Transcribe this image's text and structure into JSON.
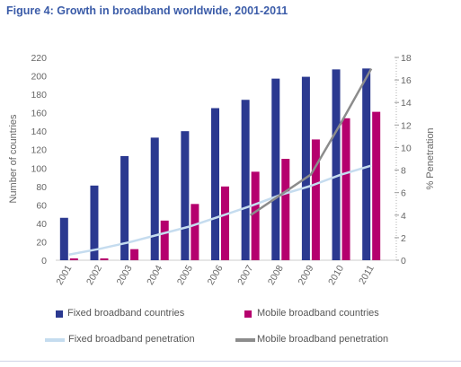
{
  "figure_title": "Figure 4: Growth in broadband worldwide, 2001-2011",
  "colors": {
    "fixed_bar": "#2b3990",
    "mobile_bar": "#b5006e",
    "fixed_line": "#c5dcef",
    "mobile_line": "#8c8c8c",
    "title": "#3a5ba8"
  },
  "chart_data": {
    "type": "bar",
    "categories": [
      "2001",
      "2002",
      "2003",
      "2004",
      "2005",
      "2006",
      "2007",
      "2008",
      "2009",
      "2010",
      "2011"
    ],
    "ylabel": "Number of countries",
    "y2label": "% Penetration",
    "ylim": [
      0,
      220
    ],
    "y2lim": [
      0,
      18
    ],
    "yticks": [
      "0",
      "20",
      "40",
      "60",
      "80",
      "100",
      "120",
      "140",
      "160",
      "180",
      "200",
      "220"
    ],
    "y2ticks": [
      "0",
      "2",
      "4",
      "6",
      "8",
      "10",
      "12",
      "14",
      "16",
      "18"
    ],
    "series": [
      {
        "name": "Fixed broadband countries",
        "kind": "bar",
        "axis": "left",
        "values": [
          46,
          81,
          113,
          133,
          140,
          165,
          174,
          197,
          199,
          207,
          208
        ]
      },
      {
        "name": "Mobile broadband countries",
        "kind": "bar",
        "axis": "left",
        "values": [
          2,
          2,
          12,
          43,
          61,
          80,
          96,
          110,
          131,
          154,
          161
        ]
      },
      {
        "name": "Fixed broadband penetration",
        "kind": "line",
        "axis": "right",
        "values": [
          0.5,
          1.0,
          1.6,
          2.3,
          3.0,
          3.9,
          4.8,
          5.8,
          6.6,
          7.6,
          8.4
        ]
      },
      {
        "name": "Mobile broadband penetration",
        "kind": "line",
        "axis": "right",
        "values": [
          null,
          null,
          null,
          null,
          null,
          null,
          4.0,
          5.8,
          7.6,
          12.2,
          17.0
        ]
      }
    ],
    "legend_position": "bottom",
    "grid": false
  }
}
